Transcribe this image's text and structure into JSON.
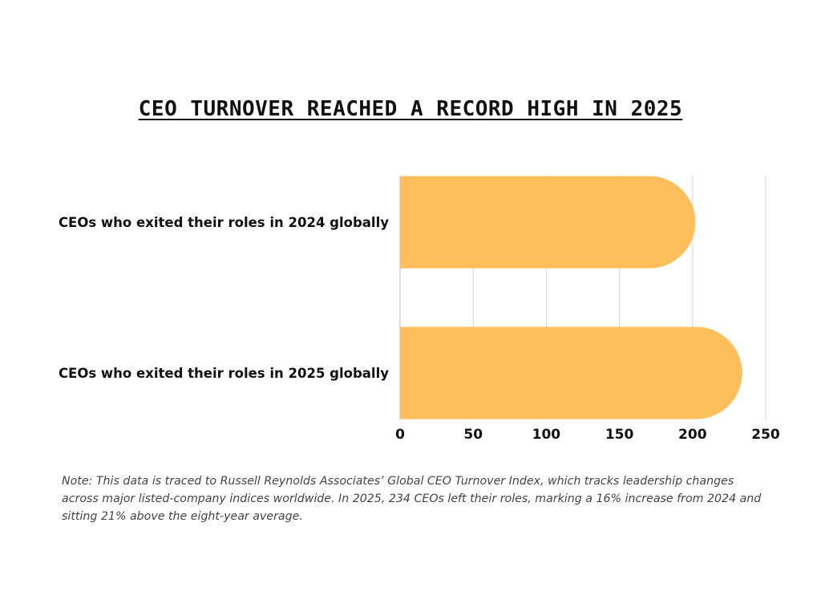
{
  "chart_data": {
    "type": "bar",
    "orientation": "horizontal",
    "title": "CEO TURNOVER REACHED A RECORD HIGH IN 2025",
    "categories": [
      "CEOs who exited their roles in 2024 globally",
      "CEOs who exited their roles in 2025 globally"
    ],
    "values": [
      202,
      234
    ],
    "xlim": [
      0,
      250
    ],
    "x_ticks": [
      "0",
      "50",
      "100",
      "150",
      "200",
      "250"
    ],
    "grid": true,
    "bar_color": "#FFBE5C",
    "grid_color": "#D3D3D3"
  },
  "note": "Note: This data is traced to Russell Reynolds Associates’ Global CEO Turnover Index, which tracks leadership changes across major listed-company indices worldwide. In 2025, 234 CEOs left their roles, marking a 16% increase from 2024 and sitting 21% above the eight-year average."
}
